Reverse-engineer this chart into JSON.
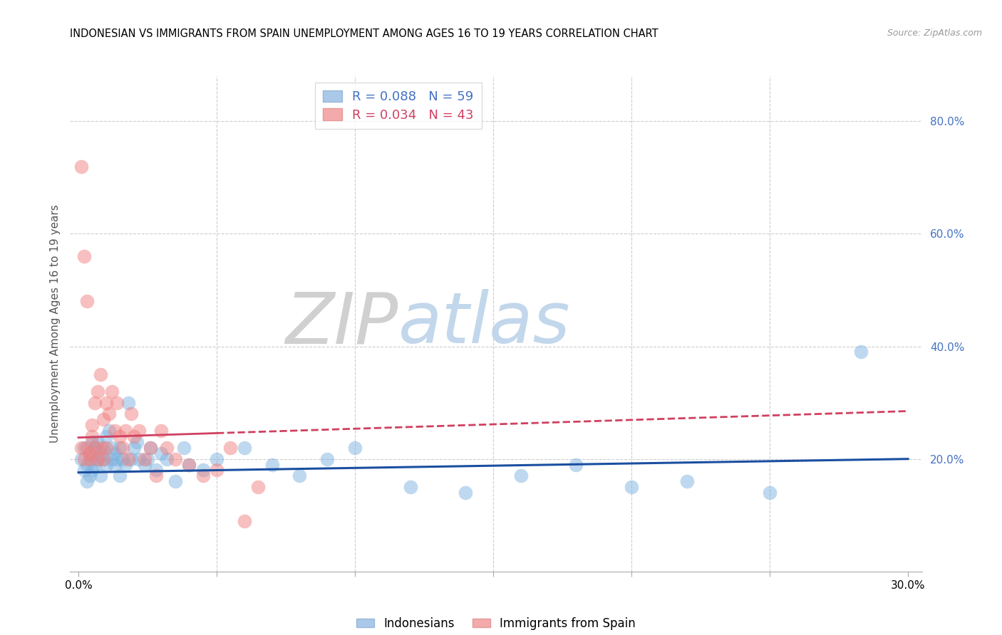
{
  "title": "INDONESIAN VS IMMIGRANTS FROM SPAIN UNEMPLOYMENT AMONG AGES 16 TO 19 YEARS CORRELATION CHART",
  "source": "Source: ZipAtlas.com",
  "ylabel": "Unemployment Among Ages 16 to 19 years",
  "series1_label": "Indonesians",
  "series2_label": "Immigrants from Spain",
  "series1_color": "#7eb3e0",
  "series2_color": "#f08080",
  "series1_line_color": "#1a4fa0",
  "series2_line_color": "#d04060",
  "legend1_text": "R = 0.088   N = 59",
  "legend2_text": "R = 0.034   N = 43",
  "legend1_color": "#4472c4",
  "legend2_color": "#d04060",
  "watermark": "ZIPatlas",
  "xlim": [
    -0.003,
    0.305
  ],
  "ylim": [
    0.0,
    0.88
  ],
  "right_ytick_color": "#4472c4",
  "right_yticks": [
    0.2,
    0.4,
    0.6,
    0.8
  ],
  "right_yticklabels": [
    "20.0%",
    "40.0%",
    "60.0%",
    "80.0%"
  ],
  "blue_line_start_y": 0.176,
  "blue_line_end_y": 0.2,
  "pink_line_start_y": 0.238,
  "pink_line_end_y": 0.285,
  "indonesians_x": [
    0.001,
    0.002,
    0.002,
    0.003,
    0.003,
    0.004,
    0.004,
    0.005,
    0.005,
    0.005,
    0.006,
    0.006,
    0.007,
    0.007,
    0.008,
    0.008,
    0.009,
    0.009,
    0.01,
    0.01,
    0.011,
    0.012,
    0.012,
    0.013,
    0.013,
    0.014,
    0.015,
    0.015,
    0.016,
    0.017,
    0.018,
    0.019,
    0.02,
    0.021,
    0.022,
    0.024,
    0.025,
    0.026,
    0.028,
    0.03,
    0.032,
    0.035,
    0.038,
    0.04,
    0.045,
    0.05,
    0.06,
    0.07,
    0.08,
    0.09,
    0.1,
    0.12,
    0.14,
    0.16,
    0.18,
    0.2,
    0.22,
    0.25,
    0.283
  ],
  "indonesians_y": [
    0.2,
    0.18,
    0.22,
    0.16,
    0.19,
    0.21,
    0.17,
    0.23,
    0.2,
    0.18,
    0.22,
    0.19,
    0.2,
    0.23,
    0.17,
    0.21,
    0.2,
    0.22,
    0.19,
    0.24,
    0.25,
    0.2,
    0.22,
    0.19,
    0.21,
    0.2,
    0.17,
    0.22,
    0.2,
    0.19,
    0.3,
    0.2,
    0.22,
    0.23,
    0.2,
    0.19,
    0.2,
    0.22,
    0.18,
    0.21,
    0.2,
    0.16,
    0.22,
    0.19,
    0.18,
    0.2,
    0.22,
    0.19,
    0.17,
    0.2,
    0.22,
    0.15,
    0.14,
    0.17,
    0.19,
    0.15,
    0.16,
    0.14,
    0.39
  ],
  "spain_x": [
    0.001,
    0.001,
    0.002,
    0.002,
    0.003,
    0.003,
    0.004,
    0.004,
    0.005,
    0.005,
    0.006,
    0.006,
    0.007,
    0.007,
    0.008,
    0.008,
    0.009,
    0.009,
    0.01,
    0.01,
    0.011,
    0.012,
    0.013,
    0.014,
    0.015,
    0.016,
    0.017,
    0.018,
    0.019,
    0.02,
    0.022,
    0.024,
    0.026,
    0.028,
    0.03,
    0.032,
    0.035,
    0.04,
    0.045,
    0.05,
    0.055,
    0.06,
    0.065
  ],
  "spain_y": [
    0.72,
    0.22,
    0.56,
    0.2,
    0.48,
    0.22,
    0.2,
    0.21,
    0.26,
    0.24,
    0.22,
    0.3,
    0.32,
    0.2,
    0.22,
    0.35,
    0.2,
    0.27,
    0.3,
    0.22,
    0.28,
    0.32,
    0.25,
    0.3,
    0.24,
    0.22,
    0.25,
    0.2,
    0.28,
    0.24,
    0.25,
    0.2,
    0.22,
    0.17,
    0.25,
    0.22,
    0.2,
    0.19,
    0.17,
    0.18,
    0.22,
    0.09,
    0.15
  ]
}
